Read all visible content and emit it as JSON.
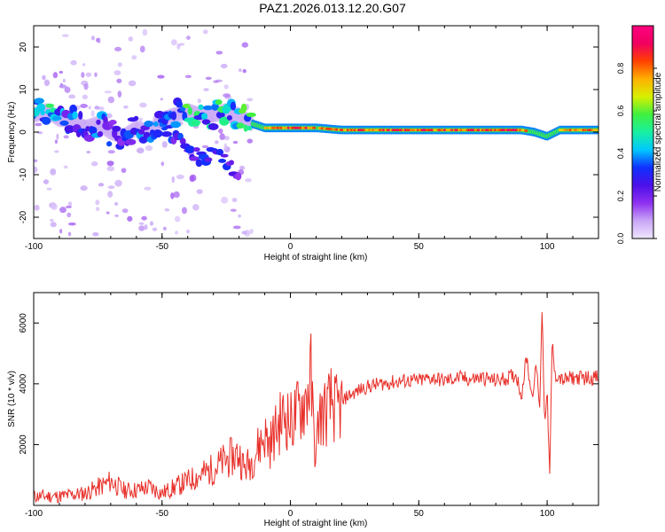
{
  "title": "PAZ1.2026.013.12.20.G07",
  "colorbar": {
    "label": "Normalized spectral amplitude",
    "ticks": [
      "0.0",
      "0.2",
      "0.4",
      "0.6",
      "0.8"
    ],
    "tick_values": [
      0.0,
      0.2,
      0.4,
      0.6,
      0.8
    ],
    "range": [
      0,
      1
    ],
    "colors": [
      "#f0e6ff",
      "#c8a6f6",
      "#8f30f0",
      "#4b10e8",
      "#1030ff",
      "#00c8ff",
      "#18f0a0",
      "#40f040",
      "#d8f000",
      "#ffb000",
      "#ff4000",
      "#f00060",
      "#ff0080"
    ]
  },
  "chart_data": [
    {
      "type": "heatmap",
      "title": "PAZ1.2026.013.12.20.G07",
      "xlabel": "Height of straight line (km)",
      "ylabel": "Frequency (Hz)",
      "xlim": [
        -100,
        120
      ],
      "ylim": [
        -25,
        25
      ],
      "xticks": [
        -100,
        -50,
        0,
        50,
        100
      ],
      "xtick_labels": [
        "-100",
        "-50",
        "0",
        "50",
        "100"
      ],
      "yticks": [
        -20,
        -10,
        0,
        10,
        20
      ],
      "ytick_labels": [
        "-20",
        "-10",
        "0",
        "10",
        "20"
      ],
      "ridge": {
        "x": [
          -100,
          -95,
          -90,
          -85,
          -80,
          -75,
          -70,
          -65,
          -60,
          -55,
          -50,
          -45,
          -40,
          -35,
          -30,
          -25,
          -20,
          -15,
          -10,
          -5,
          0,
          5,
          10,
          20,
          40,
          60,
          80,
          90,
          95,
          100,
          105,
          120
        ],
        "freq": [
          4,
          5,
          3,
          3,
          1,
          2,
          0,
          -1,
          1,
          0,
          3,
          4,
          5,
          4,
          4,
          5,
          4,
          2,
          1,
          1,
          1,
          1,
          1,
          0.5,
          0.5,
          0.5,
          0.5,
          0.5,
          0,
          -1,
          0.5,
          0.5
        ],
        "amplitude": [
          0.4,
          0.5,
          0.35,
          0.35,
          0.3,
          0.35,
          0.3,
          0.3,
          0.35,
          0.3,
          0.4,
          0.4,
          0.5,
          0.5,
          0.45,
          0.5,
          0.5,
          0.6,
          0.75,
          0.85,
          0.95,
          0.9,
          0.8,
          0.85,
          0.9,
          0.9,
          0.9,
          0.9,
          0.7,
          0.5,
          0.8,
          0.85
        ]
      },
      "branch": {
        "x": [
          -50,
          -45,
          -40,
          -35,
          -30,
          -25,
          -20
        ],
        "freq": [
          1,
          -1,
          -4,
          -6,
          -5,
          -7,
          -10
        ],
        "amplitude": [
          0.3,
          0.3,
          0.3,
          0.3,
          0.3,
          0.3,
          0.25
        ]
      }
    },
    {
      "type": "line",
      "title": "",
      "xlabel": "Height of straight line (km)",
      "ylabel": "SNR (10 * v/v)",
      "xlim": [
        -100,
        120
      ],
      "ylim": [
        0,
        7000
      ],
      "xticks": [
        -100,
        -50,
        0,
        50,
        100
      ],
      "xtick_labels": [
        "-100",
        "-50",
        "0",
        "50",
        "100"
      ],
      "yticks": [
        2000,
        4000,
        6000
      ],
      "ytick_labels": [
        "2000",
        "4000",
        "6000"
      ],
      "color": "#e8302a",
      "series": [
        {
          "name": "SNR",
          "x": [
            -100,
            -90,
            -80,
            -72,
            -70,
            -65,
            -60,
            -55,
            -50,
            -45,
            -40,
            -35,
            -30,
            -25,
            -20,
            -18,
            -15,
            -12,
            -10,
            -8,
            -5,
            -2,
            0,
            3,
            6,
            8,
            9,
            10,
            11,
            12,
            14,
            16,
            18,
            20,
            22,
            25,
            28,
            30,
            35,
            40,
            45,
            50,
            55,
            60,
            65,
            70,
            75,
            80,
            85,
            88,
            90,
            92,
            94,
            96,
            97,
            98,
            99,
            100,
            101,
            102,
            103,
            104,
            106,
            110,
            115,
            120
          ],
          "y": [
            300,
            300,
            400,
            700,
            800,
            500,
            500,
            600,
            400,
            600,
            800,
            1000,
            1200,
            1500,
            1700,
            1200,
            1500,
            2000,
            2300,
            2000,
            2600,
            3000,
            2700,
            3100,
            3500,
            4200,
            2500,
            1500,
            2900,
            3000,
            3100,
            3400,
            3100,
            3300,
            3600,
            3700,
            3850,
            3900,
            4000,
            4050,
            4100,
            4100,
            4200,
            4100,
            4200,
            4150,
            4200,
            4100,
            4200,
            4300,
            3600,
            4900,
            3600,
            4600,
            3000,
            6500,
            2800,
            3700,
            1000,
            5500,
            4200,
            4300,
            4100,
            4200,
            4200,
            4200
          ]
        }
      ]
    }
  ]
}
